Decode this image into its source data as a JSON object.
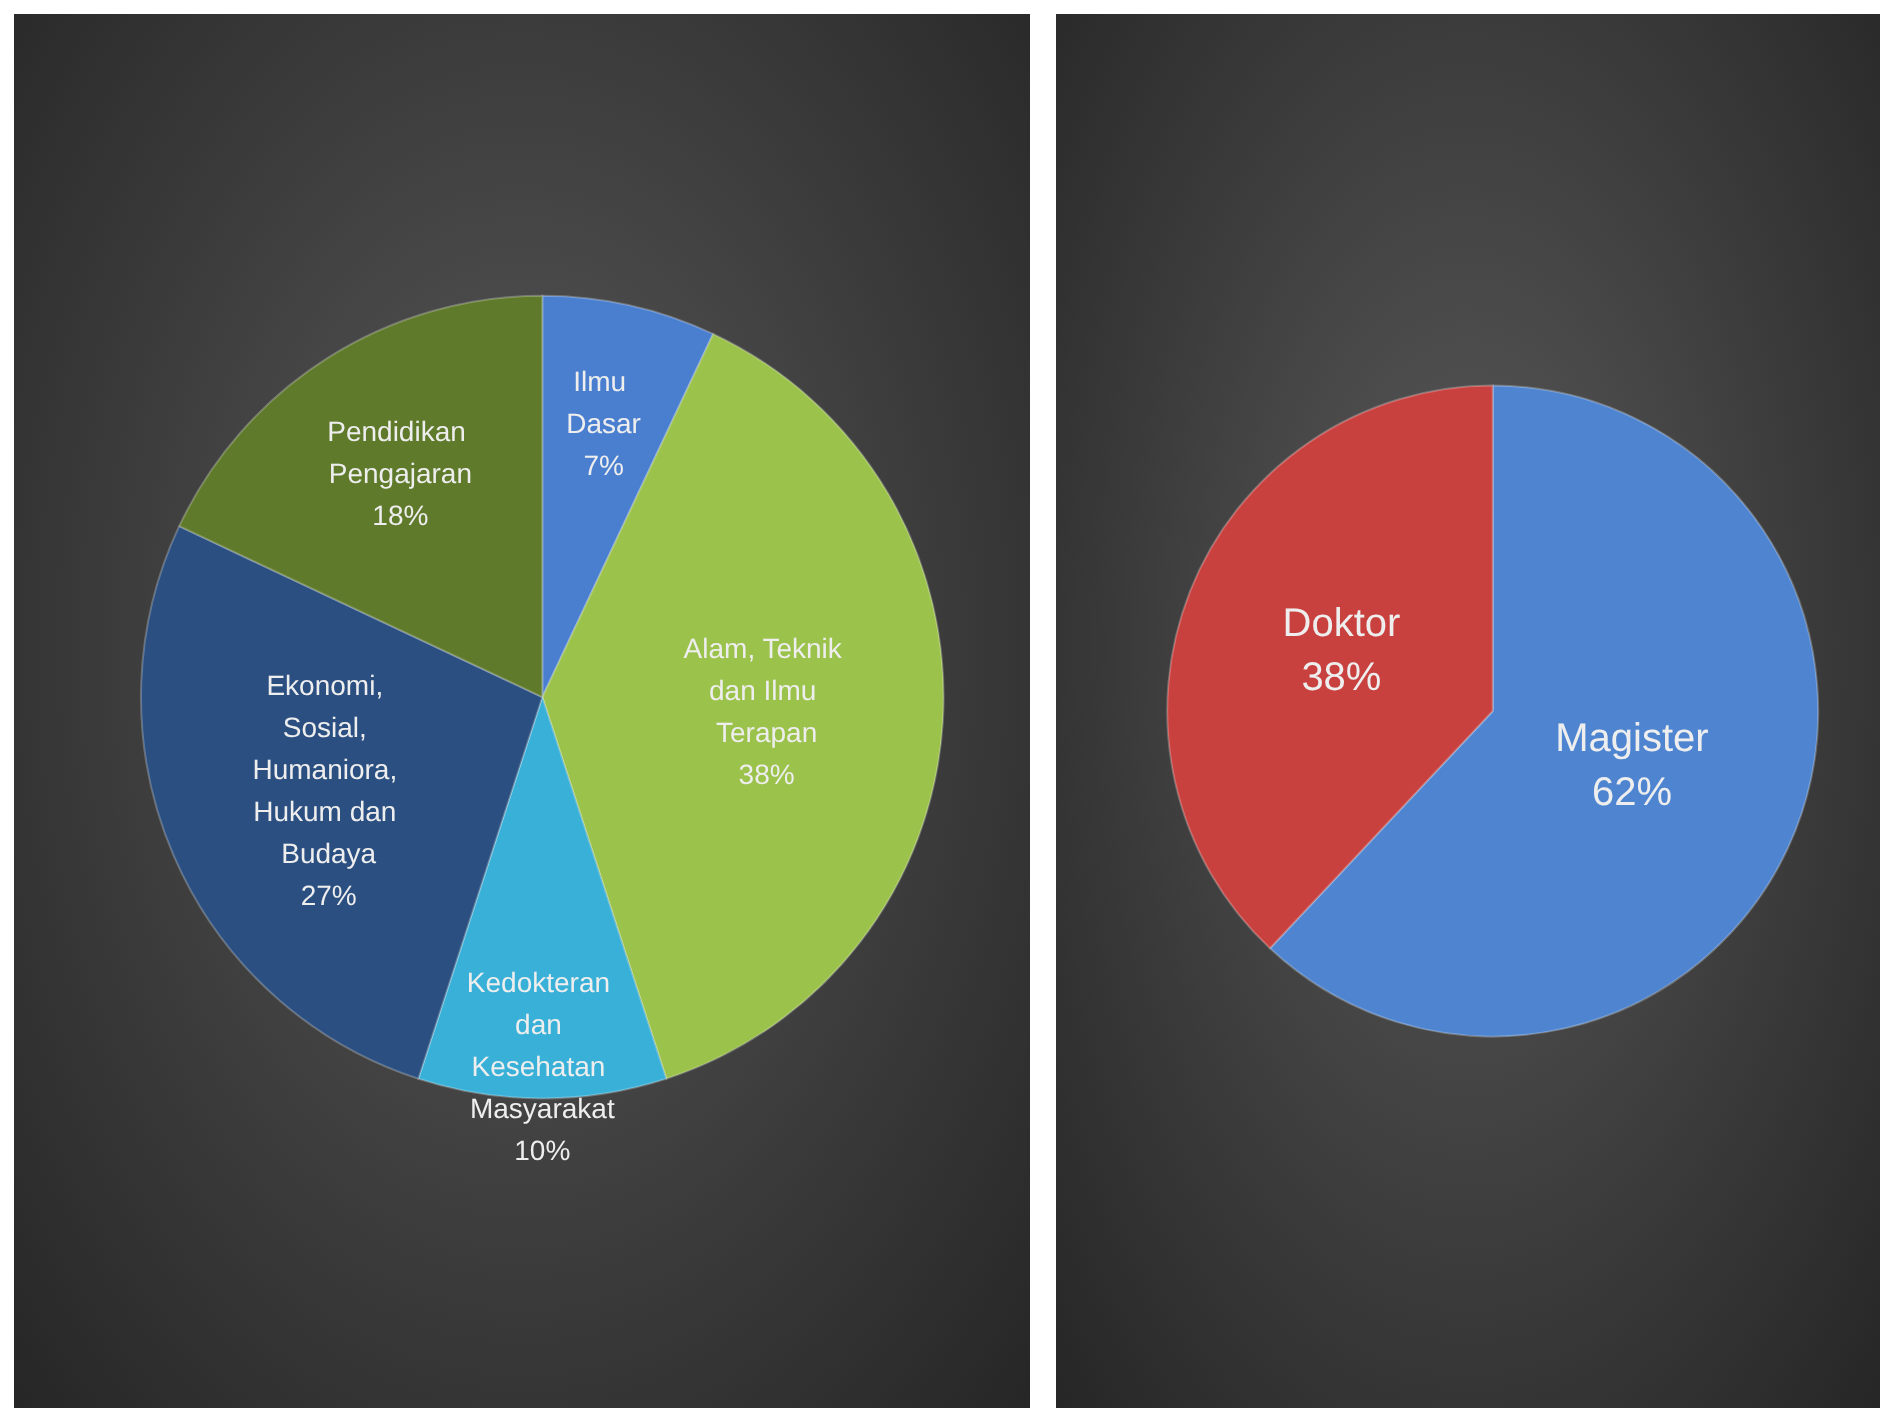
{
  "chart_data": [
    {
      "type": "pie",
      "categories": [
        "Ilmu Dasar",
        "Alam, Teknik dan Ilmu Terapan",
        "Kedokteran dan Kesehatan Masyarakat",
        "Ekonomi, Sosial, Humaniora, Hukum dan Budaya",
        "Pendidikan Pengajaran"
      ],
      "values": [
        7,
        38,
        10,
        27,
        18
      ],
      "value_labels": [
        "7%",
        "38%",
        "10%",
        "27%",
        "18%"
      ],
      "colors": [
        "#4a7fd0",
        "#9bc24a",
        "#38b0d8",
        "#2a4f80",
        "#5f7a2a"
      ]
    },
    {
      "type": "pie",
      "categories": [
        "Magister",
        "Doktor"
      ],
      "values": [
        62,
        38
      ],
      "value_labels": [
        "62%",
        "38%"
      ],
      "colors": [
        "#4f85d0",
        "#c9413f"
      ]
    }
  ]
}
